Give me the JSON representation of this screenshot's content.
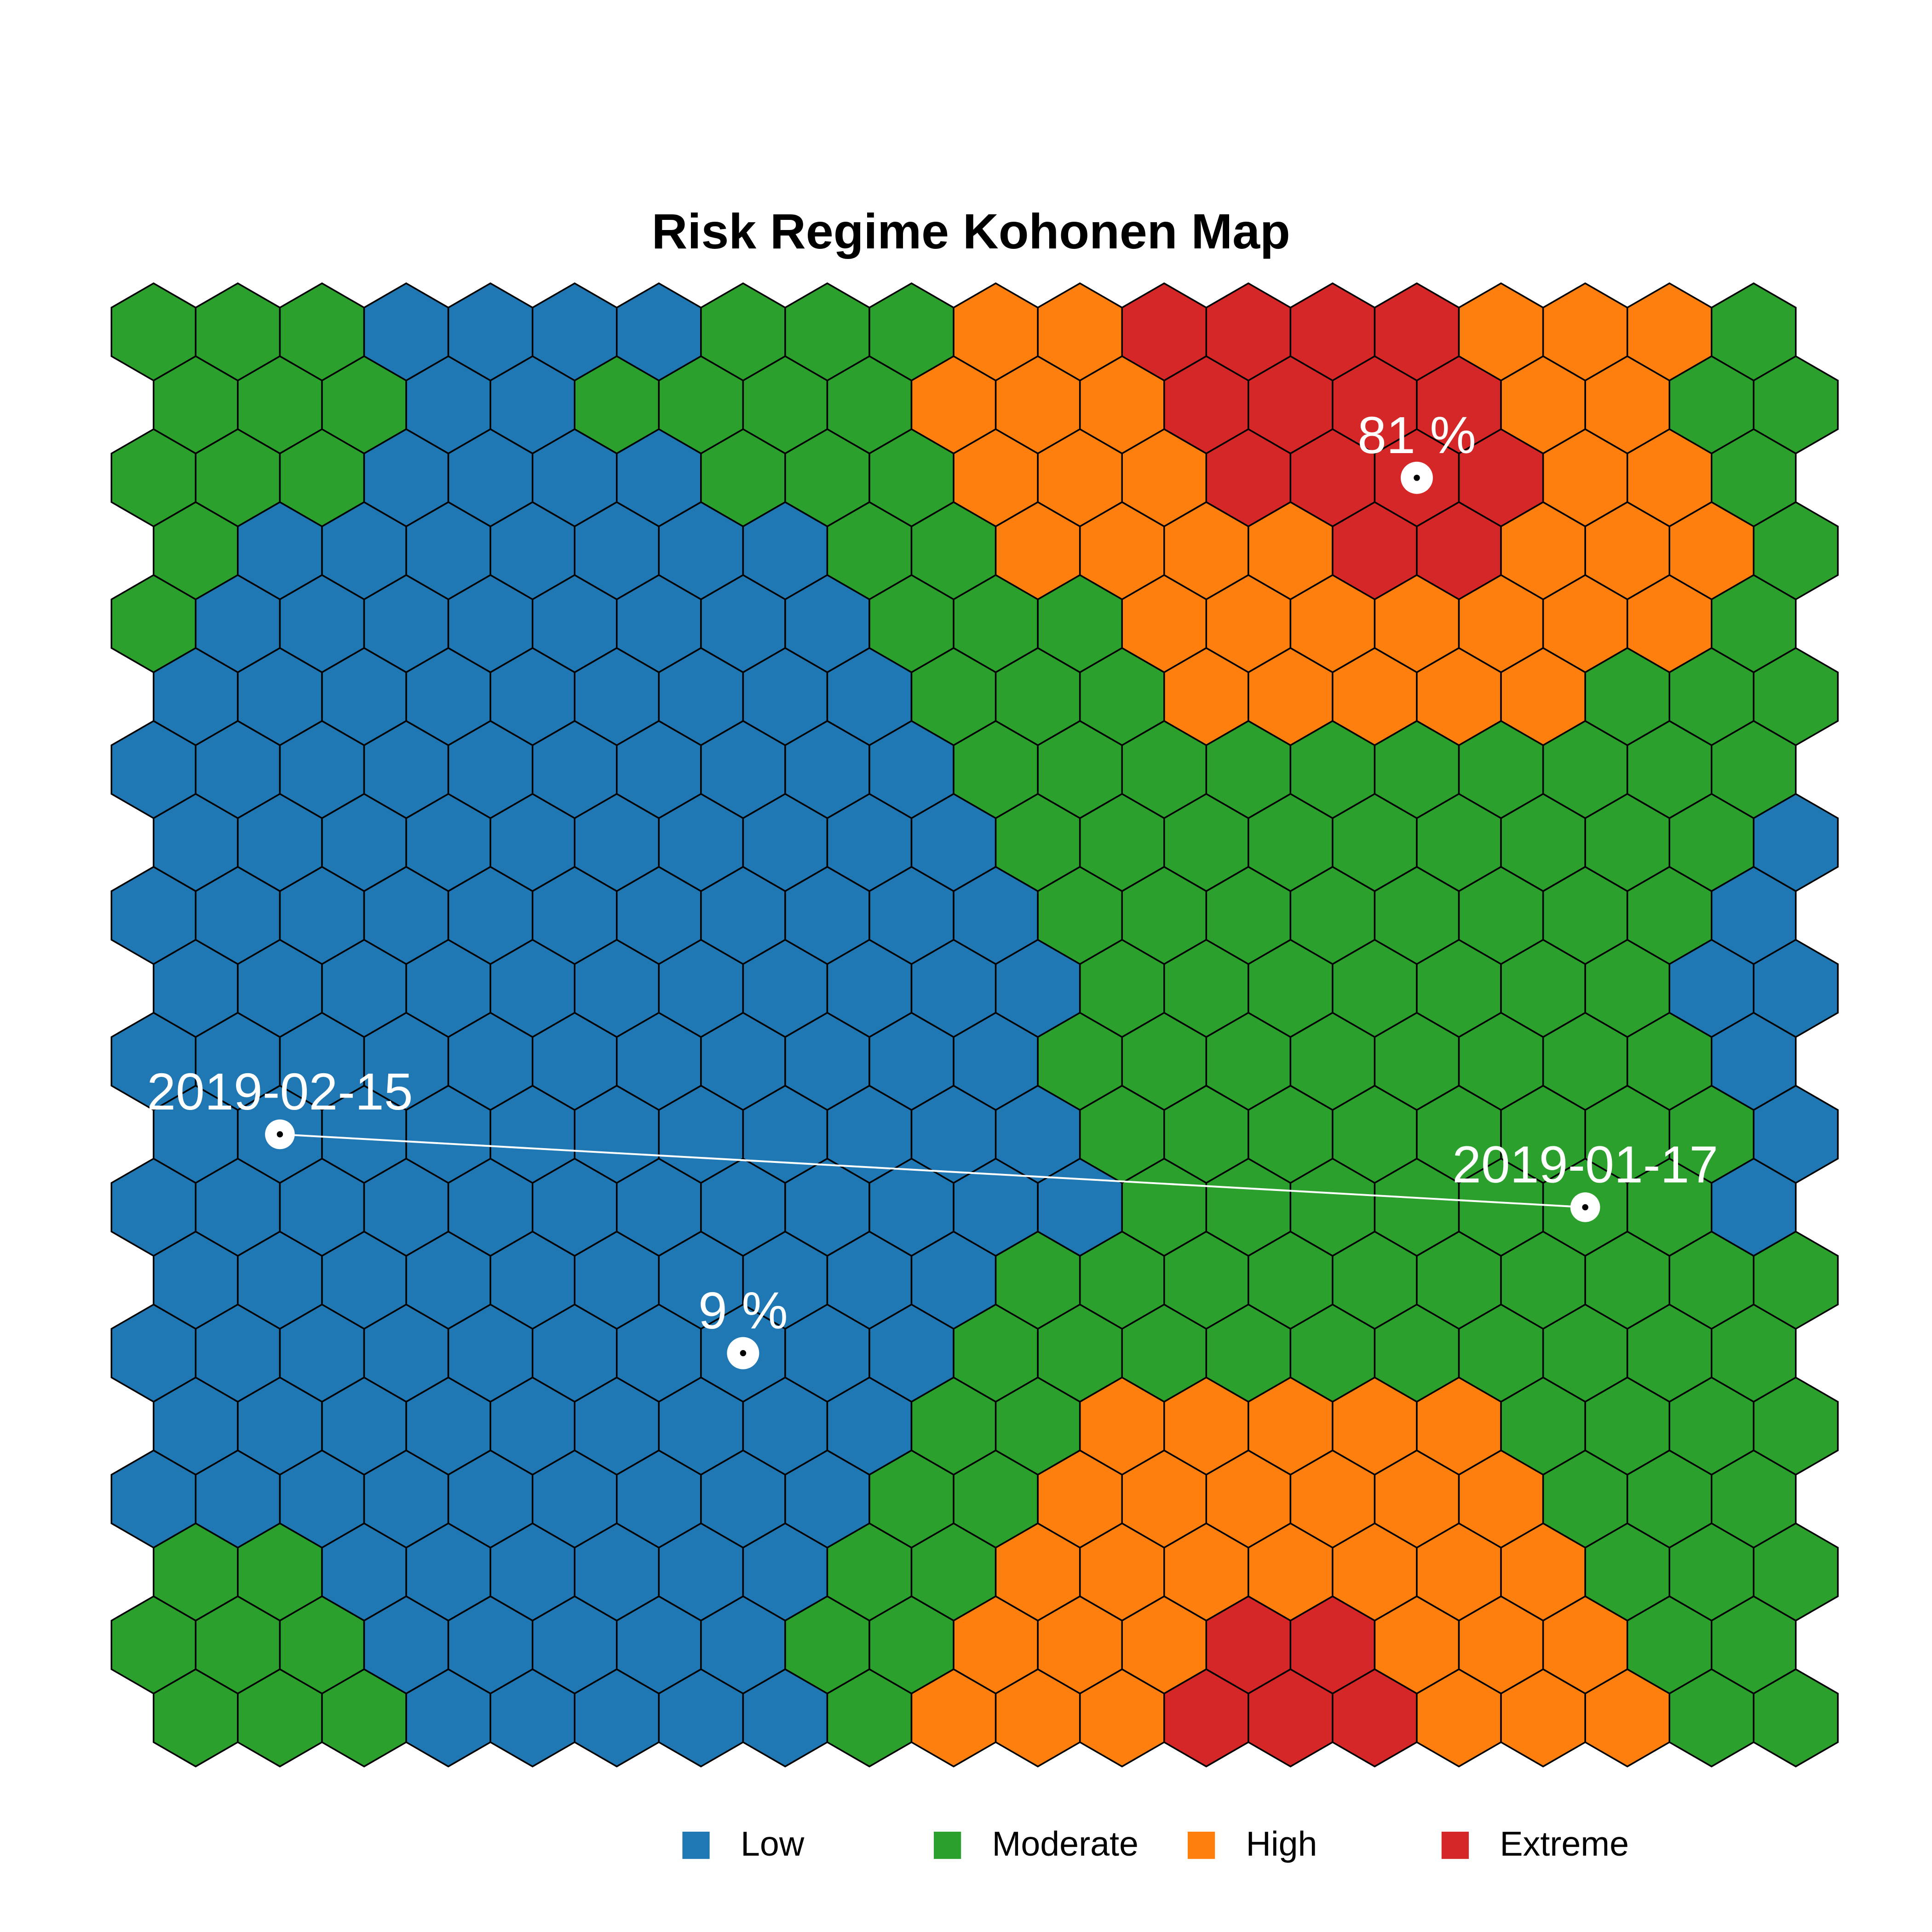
{
  "chart_data": {
    "type": "hexmap",
    "title": "Risk Regime Kohonen Map",
    "legend": [
      {
        "name": "Low",
        "color": "#1f77b4"
      },
      {
        "name": "Moderate",
        "color": "#2ca02c"
      },
      {
        "name": "High",
        "color": "#ff7f0e"
      },
      {
        "name": "Extreme",
        "color": "#d62728"
      }
    ],
    "cells": [
      [
        1,
        1,
        1,
        0,
        0,
        0,
        0,
        1,
        1,
        1,
        2,
        2,
        3,
        3,
        3,
        3,
        2,
        2,
        2,
        1
      ],
      [
        1,
        1,
        1,
        0,
        0,
        1,
        1,
        1,
        1,
        2,
        2,
        2,
        3,
        3,
        3,
        3,
        2,
        2,
        1,
        1
      ],
      [
        1,
        1,
        1,
        0,
        0,
        0,
        0,
        1,
        1,
        1,
        2,
        2,
        2,
        3,
        3,
        3,
        3,
        2,
        2,
        1
      ],
      [
        1,
        0,
        0,
        0,
        0,
        0,
        0,
        0,
        1,
        1,
        2,
        2,
        2,
        2,
        3,
        3,
        2,
        2,
        2,
        1
      ],
      [
        1,
        0,
        0,
        0,
        0,
        0,
        0,
        0,
        0,
        1,
        1,
        1,
        2,
        2,
        2,
        2,
        2,
        2,
        2,
        1
      ],
      [
        0,
        0,
        0,
        0,
        0,
        0,
        0,
        0,
        0,
        1,
        1,
        1,
        2,
        2,
        2,
        2,
        2,
        1,
        1,
        1
      ],
      [
        0,
        0,
        0,
        0,
        0,
        0,
        0,
        0,
        0,
        0,
        1,
        1,
        1,
        1,
        1,
        1,
        1,
        1,
        1,
        1
      ],
      [
        0,
        0,
        0,
        0,
        0,
        0,
        0,
        0,
        0,
        0,
        1,
        1,
        1,
        1,
        1,
        1,
        1,
        1,
        1,
        0
      ],
      [
        0,
        0,
        0,
        0,
        0,
        0,
        0,
        0,
        0,
        0,
        0,
        1,
        1,
        1,
        1,
        1,
        1,
        1,
        1,
        0
      ],
      [
        0,
        0,
        0,
        0,
        0,
        0,
        0,
        0,
        0,
        0,
        0,
        1,
        1,
        1,
        1,
        1,
        1,
        1,
        0,
        0
      ],
      [
        0,
        0,
        0,
        0,
        0,
        0,
        0,
        0,
        0,
        0,
        0,
        1,
        1,
        1,
        1,
        1,
        1,
        1,
        1,
        0
      ],
      [
        0,
        0,
        0,
        0,
        0,
        0,
        0,
        0,
        0,
        0,
        0,
        1,
        1,
        1,
        1,
        1,
        1,
        1,
        1,
        0
      ],
      [
        0,
        0,
        0,
        0,
        0,
        0,
        0,
        0,
        0,
        0,
        0,
        0,
        1,
        1,
        1,
        1,
        1,
        1,
        1,
        0
      ],
      [
        0,
        0,
        0,
        0,
        0,
        0,
        0,
        0,
        0,
        0,
        1,
        1,
        1,
        1,
        1,
        1,
        1,
        1,
        1,
        1
      ],
      [
        0,
        0,
        0,
        0,
        0,
        0,
        0,
        0,
        0,
        0,
        1,
        1,
        1,
        1,
        1,
        1,
        1,
        1,
        1,
        1
      ],
      [
        0,
        0,
        0,
        0,
        0,
        0,
        0,
        0,
        0,
        1,
        1,
        2,
        2,
        2,
        2,
        2,
        1,
        1,
        1,
        1
      ],
      [
        0,
        0,
        0,
        0,
        0,
        0,
        0,
        0,
        0,
        1,
        1,
        2,
        2,
        2,
        2,
        2,
        2,
        1,
        1,
        1
      ],
      [
        1,
        1,
        0,
        0,
        0,
        0,
        0,
        0,
        1,
        1,
        2,
        2,
        2,
        2,
        2,
        2,
        2,
        1,
        1,
        1
      ],
      [
        1,
        1,
        1,
        0,
        0,
        0,
        0,
        0,
        1,
        1,
        2,
        2,
        2,
        3,
        3,
        2,
        2,
        2,
        1,
        1
      ],
      [
        1,
        1,
        1,
        0,
        0,
        0,
        0,
        0,
        1,
        2,
        2,
        2,
        3,
        3,
        3,
        2,
        2,
        2,
        1,
        1
      ]
    ],
    "markers": [
      {
        "label": "81 %",
        "row": 2,
        "col": 15
      },
      {
        "label": "9 %",
        "row": 14,
        "col": 7
      }
    ],
    "trajectory": [
      {
        "label": "2019-02-15",
        "row": 11,
        "col": 1
      },
      {
        "label": "2019-01-17",
        "row": 12,
        "col": 17
      }
    ]
  }
}
